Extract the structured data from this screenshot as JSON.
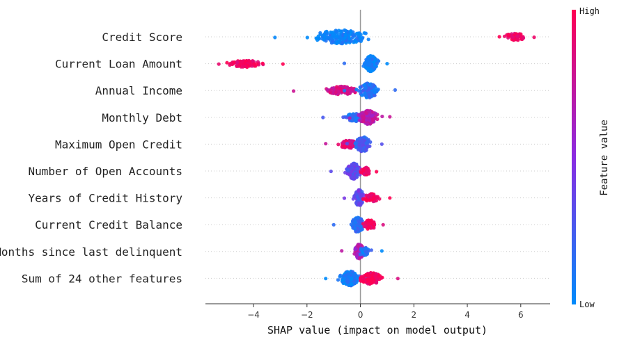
{
  "chart_data": {
    "type": "scatter",
    "subtype": "shap-beeswarm",
    "xlabel": "SHAP value (impact on model output)",
    "xlim": [
      -5.8,
      7.1
    ],
    "xticks": [
      -4,
      -2,
      0,
      2,
      4,
      6
    ],
    "xtick_labels": [
      "−4",
      "−2",
      "0",
      "2",
      "4",
      "6"
    ],
    "colorbar": {
      "title": "Feature value",
      "high_label": "High",
      "low_label": "Low",
      "high_color": "#ff0052",
      "low_color": "#008bfb"
    },
    "features": [
      {
        "name": "Credit Score",
        "groups": [
          {
            "min": -3.2,
            "max": 0.3,
            "center": -0.7,
            "spread": 1.0,
            "n": 190,
            "color": 0.03,
            "width": 0.55
          },
          {
            "min": 5.2,
            "max": 6.5,
            "center": 5.8,
            "spread": 0.35,
            "n": 60,
            "color": 0.97,
            "width": 0.25
          }
        ]
      },
      {
        "name": "Current Loan Amount",
        "groups": [
          {
            "min": -5.3,
            "max": -2.9,
            "center": -4.3,
            "spread": 0.55,
            "n": 90,
            "color": 0.97,
            "width": 0.25
          },
          {
            "min": -0.6,
            "max": 1.0,
            "center": 0.4,
            "spread": 0.2,
            "n": 200,
            "color": 0.05,
            "width": 0.65
          }
        ]
      },
      {
        "name": "Annual Income",
        "groups": [
          {
            "min": -2.5,
            "max": -0.2,
            "center": -0.7,
            "spread": 0.55,
            "n": 110,
            "color": 0.8,
            "width": 0.3
          },
          {
            "min": -0.6,
            "max": 1.3,
            "center": 0.3,
            "spread": 0.3,
            "n": 150,
            "color": 0.15,
            "width": 0.6
          }
        ]
      },
      {
        "name": "Monthly Debt",
        "groups": [
          {
            "min": -1.4,
            "max": 0.0,
            "center": -0.2,
            "spread": 0.35,
            "n": 90,
            "color": 0.15,
            "width": 0.3
          },
          {
            "min": -0.4,
            "max": 1.1,
            "center": 0.3,
            "spread": 0.3,
            "n": 140,
            "color": 0.7,
            "width": 0.55
          }
        ]
      },
      {
        "name": "Maximum Open Credit",
        "groups": [
          {
            "min": -1.3,
            "max": -0.1,
            "center": -0.4,
            "spread": 0.35,
            "n": 90,
            "color": 0.85,
            "width": 0.3
          },
          {
            "min": -0.5,
            "max": 0.8,
            "center": 0.1,
            "spread": 0.25,
            "n": 130,
            "color": 0.25,
            "width": 0.6
          }
        ]
      },
      {
        "name": "Number of Open Accounts",
        "groups": [
          {
            "min": -1.1,
            "max": 0.2,
            "center": -0.25,
            "spread": 0.2,
            "n": 140,
            "color": 0.35,
            "width": 0.65
          },
          {
            "min": 0.0,
            "max": 0.6,
            "center": 0.2,
            "spread": 0.15,
            "n": 40,
            "color": 0.95,
            "width": 0.3
          }
        ]
      },
      {
        "name": "Years of Credit History",
        "groups": [
          {
            "min": -0.6,
            "max": 0.3,
            "center": -0.05,
            "spread": 0.15,
            "n": 120,
            "color": 0.35,
            "width": 0.65
          },
          {
            "min": 0.1,
            "max": 1.1,
            "center": 0.4,
            "spread": 0.25,
            "n": 60,
            "color": 0.95,
            "width": 0.3
          }
        ]
      },
      {
        "name": "Current Credit Balance",
        "groups": [
          {
            "min": -1.0,
            "max": 0.3,
            "center": -0.1,
            "spread": 0.2,
            "n": 130,
            "color": 0.15,
            "width": 0.6
          },
          {
            "min": 0.1,
            "max": 0.85,
            "center": 0.35,
            "spread": 0.2,
            "n": 60,
            "color": 0.95,
            "width": 0.35
          }
        ]
      },
      {
        "name": "Months since last delinquent",
        "groups": [
          {
            "min": -0.7,
            "max": 0.1,
            "center": -0.05,
            "spread": 0.15,
            "n": 100,
            "color": 0.65,
            "width": 0.6
          },
          {
            "min": 0.0,
            "max": 0.8,
            "center": 0.15,
            "spread": 0.2,
            "n": 40,
            "color": 0.1,
            "width": 0.3
          }
        ]
      },
      {
        "name": "Sum of 24 other features",
        "groups": [
          {
            "min": -1.3,
            "max": 0.2,
            "center": -0.4,
            "spread": 0.3,
            "n": 160,
            "color": 0.05,
            "width": 0.6
          },
          {
            "min": 0.0,
            "max": 1.4,
            "center": 0.4,
            "spread": 0.35,
            "n": 130,
            "color": 0.95,
            "width": 0.45
          }
        ]
      }
    ]
  }
}
